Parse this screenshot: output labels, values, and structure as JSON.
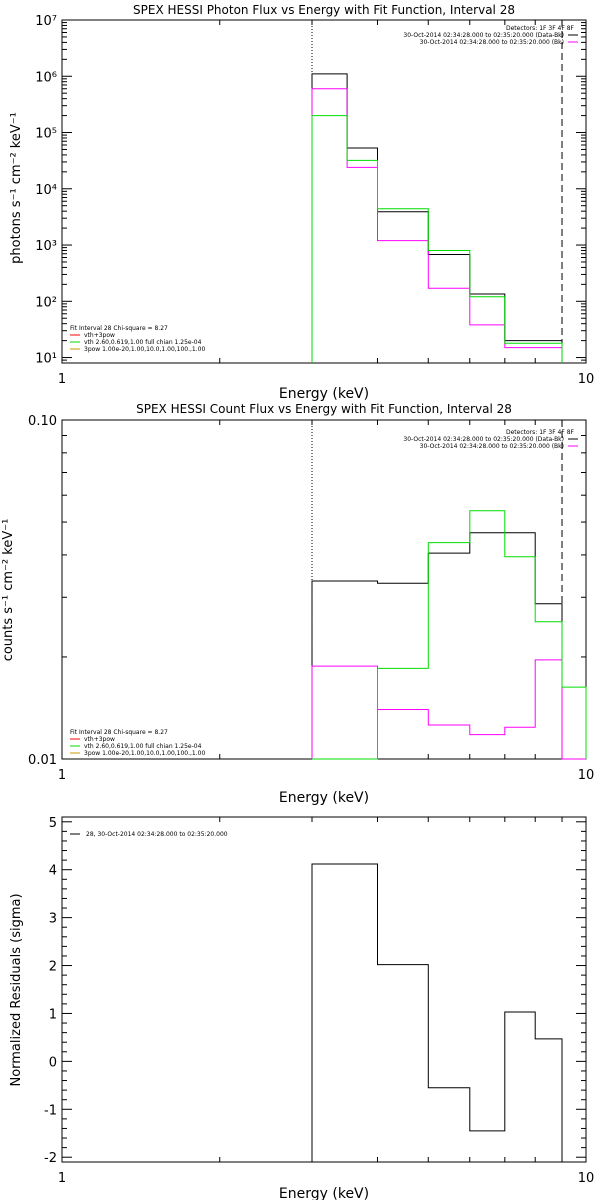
{
  "chart_data": [
    {
      "type": "line",
      "title": "SPEX HESSI Photon Flux vs Energy with Fit Function, Interval 28",
      "xlabel": "Energy (keV)",
      "ylabel": "photons s⁻¹ cm⁻² keV⁻¹",
      "x_scale": "log",
      "y_scale": "log",
      "xlim": [
        1,
        10
      ],
      "ylim": [
        8,
        10000000
      ],
      "x_tick_labels": [
        {
          "value": 1,
          "label": "1"
        },
        {
          "value": 10,
          "label": "10"
        }
      ],
      "y_tick_labels": [
        {
          "value": 10,
          "label": "10¹"
        },
        {
          "value": 100,
          "label": "10²"
        },
        {
          "value": 1000,
          "label": "10³"
        },
        {
          "value": 10000,
          "label": "10⁴"
        },
        {
          "value": 100000,
          "label": "10⁵"
        },
        {
          "value": 1000000,
          "label": "10⁶"
        },
        {
          "value": 10000000,
          "label": "10⁷"
        }
      ],
      "vlines": [
        {
          "x": 3.0,
          "style": "dotted"
        },
        {
          "x": 9.0,
          "style": "dashed"
        }
      ],
      "series": [
        {
          "name": "",
          "color": "#000000",
          "bin_edges": [
            3.0,
            3.5,
            4.0,
            5.0,
            6.0,
            7.0,
            8.0,
            9.0
          ],
          "values": [
            1100000,
            53000,
            3900,
            680,
            135,
            20,
            20
          ]
        },
        {
          "name": "",
          "color": "#ff00ff",
          "bin_edges": [
            3.0,
            3.5,
            4.0,
            5.0,
            6.0,
            7.0,
            8.0,
            9.0
          ],
          "values": [
            600000,
            24000,
            1200,
            170,
            38,
            15,
            15
          ]
        },
        {
          "name": "",
          "color": "#00dd00",
          "bin_edges": [
            3.0,
            3.5,
            4.0,
            5.0,
            6.0,
            7.0,
            8.0,
            9.0
          ],
          "values": [
            200000,
            32000,
            4400,
            800,
            120,
            18,
            18
          ]
        }
      ],
      "legend_top": {
        "heading": "Detectors: 1F 3F 4F 8F",
        "entries": [
          {
            "label": "30-Oct-2014 02:34:28.000 to 02:35:20.000 (Data-Bk)",
            "color": "#000000"
          },
          {
            "label": "30-Oct-2014 02:34:28.000 to 02:35:20.000 (Bk)",
            "color": "#ff00ff"
          }
        ]
      },
      "legend_bottom": {
        "heading": "Fit Interval 28   Chi-square = 8.27",
        "entries": [
          {
            "label": "vth+3pow",
            "color": "#ff0000"
          },
          {
            "label": "vth 2.60,0.619,1.00  full chian 1.25e-04",
            "color": "#00dd00"
          },
          {
            "label": "3pow 1.00e-20,1.00,10.0,1.00,100.,1.00",
            "color": "#cc9900"
          }
        ]
      }
    },
    {
      "type": "line",
      "title": "SPEX HESSI Count Flux vs Energy with Fit Function, Interval 28",
      "xlabel": "Energy (keV)",
      "ylabel": "counts s⁻¹ cm⁻² keV⁻¹",
      "x_scale": "log",
      "y_scale": "log",
      "xlim": [
        1,
        10
      ],
      "ylim": [
        0.01,
        0.1
      ],
      "x_tick_labels": [
        {
          "value": 1,
          "label": "1"
        },
        {
          "value": 10,
          "label": "10"
        }
      ],
      "y_tick_labels": [
        {
          "value": 0.01,
          "label": "0.01"
        },
        {
          "value": 0.1,
          "label": "0.10"
        }
      ],
      "vlines": [
        {
          "x": 3.0,
          "style": "dotted"
        },
        {
          "x": 9.0,
          "style": "dashed"
        }
      ],
      "series": [
        {
          "name": "",
          "color": "#000000",
          "bin_edges": [
            3.0,
            4.0,
            5.0,
            6.0,
            7.0,
            8.0,
            9.0
          ],
          "values": [
            0.0335,
            0.033,
            0.0405,
            0.0465,
            0.0465,
            0.0287
          ]
        },
        {
          "name": "",
          "color": "#ff00ff",
          "bin_edges": [
            3.0,
            4.0,
            5.0,
            6.0,
            7.0,
            8.0,
            9.0,
            10.0
          ],
          "values": [
            0.0188,
            0.014,
            0.0126,
            0.0118,
            0.0124,
            0.0196,
            0.0
          ]
        },
        {
          "name": "",
          "color": "#00dd00",
          "bin_edges": [
            3.0,
            4.0,
            5.0,
            6.0,
            7.0,
            8.0,
            9.0,
            10.0
          ],
          "values": [
            0.0,
            0.0185,
            0.0435,
            0.054,
            0.0395,
            0.0254,
            0.0163
          ]
        }
      ],
      "legend_top": {
        "heading": "Detectors: 1F 3F 4F 8F",
        "entries": [
          {
            "label": "30-Oct-2014 02:34:28.000 to 02:35:20.000 (Data-Bk)",
            "color": "#000000"
          },
          {
            "label": "30-Oct-2014 02:34:28.000 to 02:35:20.000 (Bk)",
            "color": "#ff00ff"
          }
        ]
      },
      "legend_bottom": {
        "heading": "Fit Interval 28   Chi-square = 8.27",
        "entries": [
          {
            "label": "vth+3pow",
            "color": "#ff0000"
          },
          {
            "label": "vth 2.60,0.619,1.00  full chian 1.25e-04",
            "color": "#00dd00"
          },
          {
            "label": "3pow 1.00e-20,1.00,10.0,1.00,100.,1.00",
            "color": "#cc9900"
          }
        ]
      }
    },
    {
      "type": "line",
      "title": "",
      "xlabel": "Energy (keV)",
      "ylabel": "Normalized Residuals (sigma)",
      "x_scale": "log",
      "y_scale": "linear",
      "xlim": [
        1,
        10
      ],
      "ylim": [
        -2.1,
        5.1
      ],
      "x_tick_labels": [
        {
          "value": 1,
          "label": "1"
        },
        {
          "value": 10,
          "label": "10"
        }
      ],
      "y_tick_labels": [
        {
          "value": -2,
          "label": "-2"
        },
        {
          "value": -1,
          "label": "-1"
        },
        {
          "value": 0,
          "label": "0"
        },
        {
          "value": 1,
          "label": "1"
        },
        {
          "value": 2,
          "label": "2"
        },
        {
          "value": 3,
          "label": "3"
        },
        {
          "value": 4,
          "label": "4"
        },
        {
          "value": 5,
          "label": "5"
        }
      ],
      "vlines": [],
      "series": [
        {
          "name": "28, 30-Oct-2014 02:34:28.000 to 02:35:20.000",
          "color": "#000000",
          "bin_edges": [
            3.0,
            4.0,
            5.0,
            6.0,
            7.0,
            8.0,
            9.0
          ],
          "values": [
            4.12,
            2.02,
            -0.55,
            -1.45,
            1.03,
            0.47
          ],
          "close_to": -2.1
        }
      ],
      "legend_top": {
        "heading": "",
        "entries": [
          {
            "label": "28, 30-Oct-2014 02:34:28.000 to 02:35:20.000",
            "color": "#000000"
          }
        ]
      },
      "legend_bottom": {
        "heading": "",
        "entries": []
      }
    }
  ]
}
